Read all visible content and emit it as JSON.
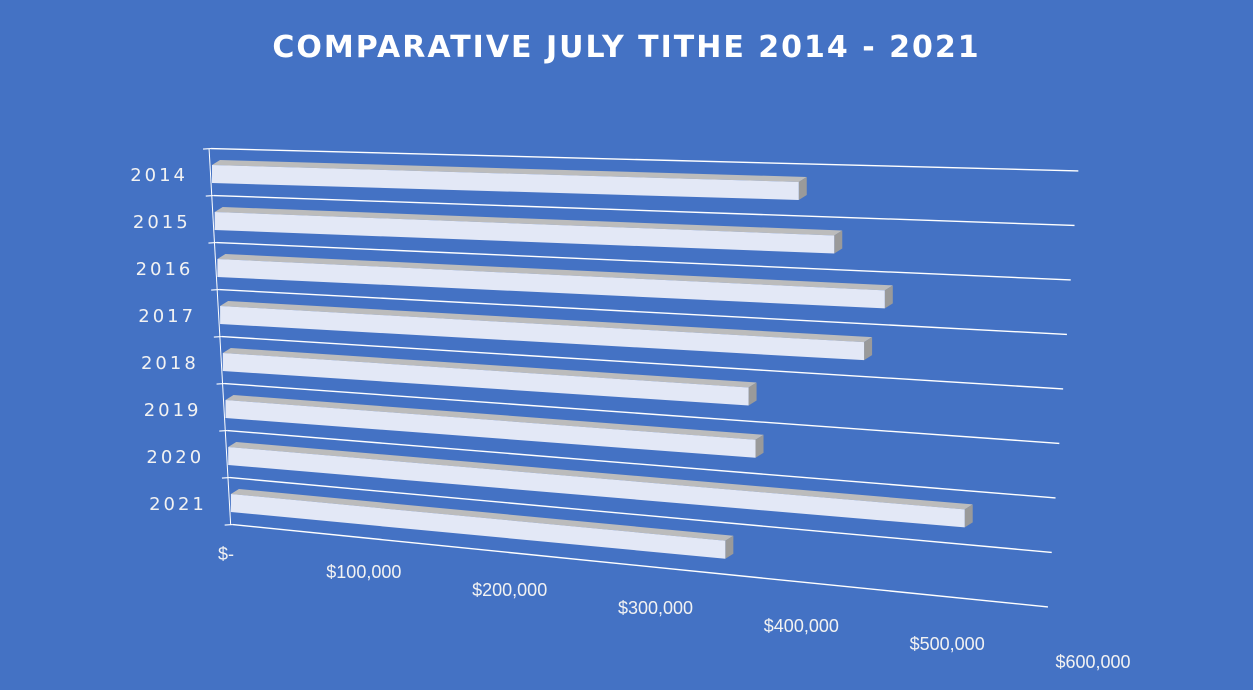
{
  "chart_data": {
    "type": "bar",
    "orientation": "horizontal",
    "style": "3d-perspective",
    "title": "COMPARATIVE JULY TITHE 2014 - 2021",
    "categories": [
      "2014",
      "2015",
      "2016",
      "2017",
      "2018",
      "2019",
      "2020",
      "2021"
    ],
    "series": [
      {
        "values": [
          407000,
          433000,
          470000,
          457000,
          376000,
          382000,
          535000,
          362000
        ]
      }
    ],
    "xlim": [
      0,
      600000
    ],
    "x_tick_labels": [
      "$-",
      "$100,000",
      "$200,000",
      "$300,000",
      "$400,000",
      "$500,000",
      "$600,000"
    ],
    "xlabel": "",
    "ylabel": "",
    "grid": true,
    "legend": "none",
    "colors": {
      "background": "#4472c4",
      "bar_face": "#e3e8f6",
      "bar_side": "#9a9a9a",
      "bar_top": "#bcbcbc",
      "gridline": "#ffffff",
      "text": "#f2f2f2"
    }
  }
}
